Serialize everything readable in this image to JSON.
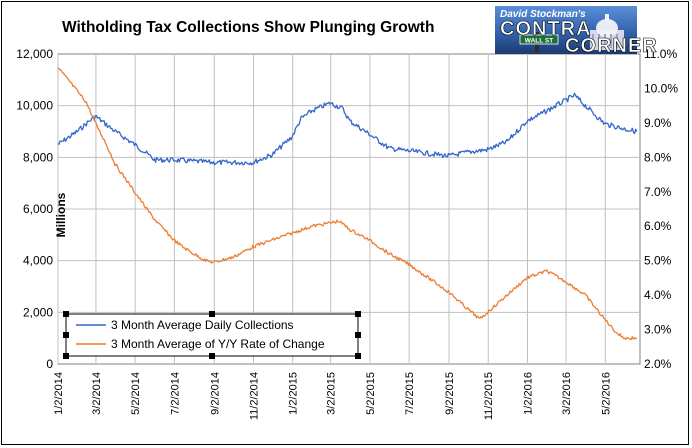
{
  "chart_data": {
    "type": "line",
    "title": "Witholding Tax Collections Show Plunging Growth",
    "ylabel": "Millions",
    "y_left": {
      "min": 0,
      "max": 12000,
      "ticks": [
        "0",
        "2,000",
        "4,000",
        "6,000",
        "8,000",
        "10,000",
        "12,000"
      ]
    },
    "y_right": {
      "min": 2.0,
      "max": 11.0,
      "ticks": [
        "2.0%",
        "3.0%",
        "4.0%",
        "5.0%",
        "6.0%",
        "7.0%",
        "8.0%",
        "9.0%",
        "10.0%",
        "11.0%"
      ]
    },
    "x_ticks": [
      "1/2/2014",
      "3/2/2014",
      "5/2/2014",
      "7/2/2014",
      "9/2/2014",
      "11/2/2014",
      "1/2/2015",
      "3/2/2015",
      "5/2/2015",
      "7/2/2015",
      "9/2/2015",
      "11/2/2015",
      "1/2/2016",
      "3/2/2016",
      "5/2/2016"
    ],
    "grid": true,
    "legend_position": "bottom-left",
    "series": [
      {
        "name": "3 Month Average Daily Collections",
        "axis": "left",
        "color": "#3366cc",
        "x": [
          "1/2/2014",
          "2/1/2014",
          "3/1/2014",
          "4/1/2014",
          "5/1/2014",
          "5/20/2014",
          "6/1/2014",
          "7/1/2014",
          "8/1/2014",
          "9/1/2014",
          "10/1/2014",
          "11/1/2014",
          "12/1/2014",
          "1/1/2015",
          "1/15/2015",
          "2/1/2015",
          "3/1/2015",
          "3/20/2015",
          "4/1/2015",
          "5/1/2015",
          "6/1/2015",
          "7/1/2015",
          "8/1/2015",
          "9/1/2015",
          "10/1/2015",
          "11/1/2015",
          "12/1/2015",
          "1/1/2016",
          "2/1/2016",
          "3/1/2016",
          "3/15/2016",
          "4/1/2016",
          "5/1/2016",
          "6/1/2016",
          "6/20/2016"
        ],
        "values": [
          8500,
          9000,
          9600,
          9000,
          8500,
          8150,
          7900,
          7900,
          7850,
          7800,
          7800,
          7800,
          8100,
          8800,
          9500,
          9800,
          10100,
          9900,
          9400,
          8900,
          8350,
          8250,
          8150,
          8050,
          8200,
          8300,
          8600,
          9400,
          9800,
          10200,
          10400,
          10000,
          9300,
          9100,
          9000
        ]
      },
      {
        "name": "3 Month Average of Y/Y Rate of Change",
        "axis": "right",
        "color": "#ed7d31",
        "x": [
          "1/2/2014",
          "1/20/2014",
          "2/15/2014",
          "3/1/2014",
          "3/15/2014",
          "4/1/2014",
          "5/1/2014",
          "5/20/2014",
          "6/1/2014",
          "7/1/2014",
          "7/15/2014",
          "8/1/2014",
          "8/20/2014",
          "9/1/2014",
          "10/1/2014",
          "11/1/2014",
          "12/1/2014",
          "1/1/2015",
          "2/1/2015",
          "3/1/2015",
          "3/15/2015",
          "4/1/2015",
          "5/1/2015",
          "6/1/2015",
          "7/1/2015",
          "8/1/2015",
          "9/1/2015",
          "10/1/2015",
          "10/20/2015",
          "11/1/2015",
          "12/1/2015",
          "1/1/2016",
          "2/1/2016",
          "3/1/2016",
          "4/1/2016",
          "5/1/2016",
          "5/20/2016",
          "6/1/2016",
          "6/20/2016"
        ],
        "values": [
          10.6,
          10.2,
          9.6,
          9.0,
          8.5,
          7.8,
          7.0,
          6.5,
          6.2,
          5.6,
          5.4,
          5.2,
          5.0,
          4.95,
          5.1,
          5.4,
          5.6,
          5.8,
          6.0,
          6.1,
          6.15,
          5.9,
          5.6,
          5.2,
          4.9,
          4.5,
          4.1,
          3.6,
          3.3,
          3.5,
          4.0,
          4.5,
          4.7,
          4.4,
          4.0,
          3.3,
          2.9,
          2.75,
          2.75
        ]
      }
    ]
  },
  "logo": {
    "line1": "David Stockman's",
    "line2": "CONTRA",
    "line3": "CORNER",
    "sign": "WALL ST"
  }
}
